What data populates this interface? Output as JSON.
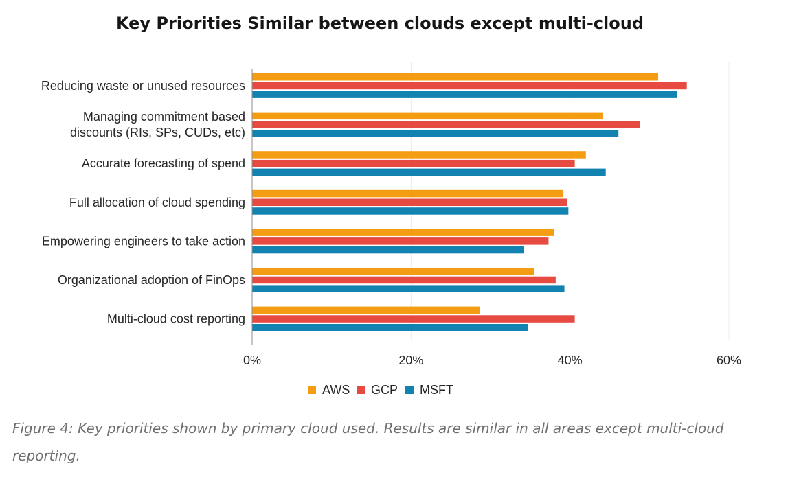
{
  "chart_data": {
    "type": "bar",
    "orientation": "horizontal",
    "title": "Key Priorities Similar between clouds except multi-cloud",
    "categories": [
      [
        "Reducing waste or unused resources"
      ],
      [
        "Managing commitment based",
        "discounts (RIs, SPs, CUDs, etc)"
      ],
      [
        "Accurate forecasting of spend"
      ],
      [
        "Full allocation of cloud spending"
      ],
      [
        "Empowering engineers to take action"
      ],
      [
        "Organizational adoption of FinOps"
      ],
      [
        "Multi-cloud cost reporting"
      ]
    ],
    "series": [
      {
        "name": "AWS",
        "color": "#f59d12",
        "values": [
          51.1,
          44.1,
          42.0,
          39.1,
          38.0,
          35.5,
          28.7
        ]
      },
      {
        "name": "GCP",
        "color": "#e64a40",
        "values": [
          54.7,
          48.8,
          40.6,
          39.6,
          37.3,
          38.2,
          40.6
        ]
      },
      {
        "name": "MSFT",
        "color": "#1283b0",
        "values": [
          53.5,
          46.1,
          44.5,
          39.8,
          34.2,
          39.3,
          34.7
        ]
      }
    ],
    "xlim": [
      0,
      60
    ],
    "xticks": [
      "0%",
      "20%",
      "40%",
      "60%"
    ],
    "xlabel": "",
    "ylabel": "",
    "grid": true,
    "legend": "bottom"
  },
  "caption": "Figure 4: Key priorities shown by primary cloud used. Results are similar in all areas except multi-cloud reporting."
}
